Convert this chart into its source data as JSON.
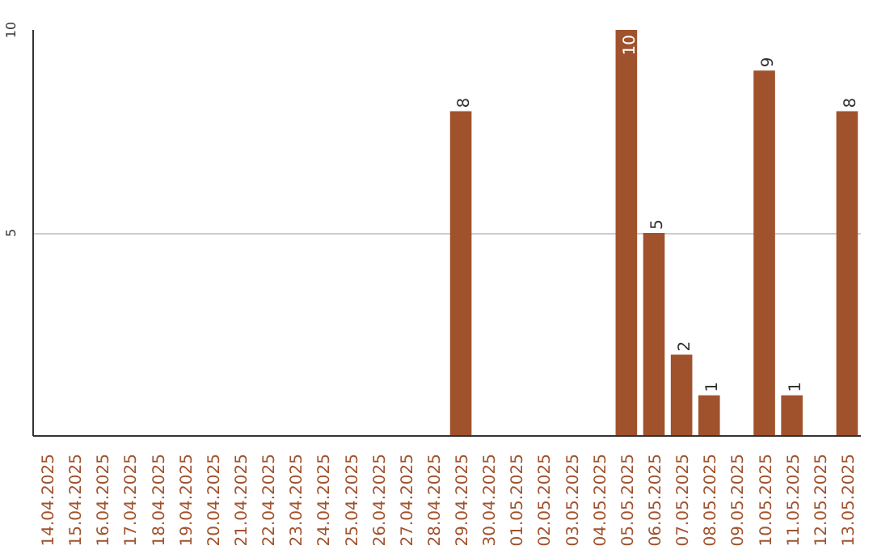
{
  "chart_data": {
    "type": "bar",
    "categories": [
      "14.04.2025",
      "15.04.2025",
      "16.04.2025",
      "17.04.2025",
      "18.04.2025",
      "19.04.2025",
      "20.04.2025",
      "21.04.2025",
      "22.04.2025",
      "23.04.2025",
      "24.04.2025",
      "25.04.2025",
      "26.04.2025",
      "27.04.2025",
      "28.04.2025",
      "29.04.2025",
      "30.04.2025",
      "01.05.2025",
      "02.05.2025",
      "03.05.2025",
      "04.05.2025",
      "05.05.2025",
      "06.05.2025",
      "07.05.2025",
      "08.05.2025",
      "09.05.2025",
      "10.05.2025",
      "11.05.2025",
      "12.05.2025",
      "13.05.2025"
    ],
    "values": [
      0,
      0,
      0,
      0,
      0,
      0,
      0,
      0,
      0,
      0,
      0,
      0,
      0,
      0,
      0,
      8,
      0,
      0,
      0,
      0,
      0,
      10,
      5,
      2,
      1,
      0,
      9,
      1,
      0,
      8
    ],
    "value_labels": [
      null,
      null,
      null,
      null,
      null,
      null,
      null,
      null,
      null,
      null,
      null,
      null,
      null,
      null,
      null,
      "8",
      null,
      null,
      null,
      null,
      null,
      "10",
      "5",
      "2",
      "1",
      null,
      "9",
      "1",
      null,
      "8"
    ],
    "color": "#a0522d",
    "ylim": [
      0,
      10
    ],
    "yticks": [
      5,
      10
    ],
    "grid": "y"
  }
}
